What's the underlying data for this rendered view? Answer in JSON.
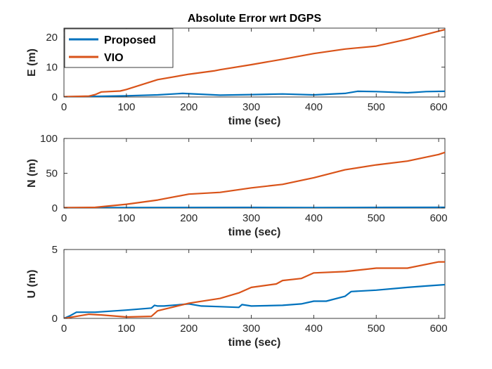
{
  "title": "Absolute Error wrt DGPS",
  "colors": {
    "Proposed": "#0072BD",
    "VIO": "#D95319"
  },
  "chart_data": [
    {
      "type": "line",
      "xlabel": "time (sec)",
      "ylabel": "E (m)",
      "xlim": [
        0,
        610
      ],
      "ylim": [
        0,
        23
      ],
      "xticks": [
        0,
        100,
        200,
        300,
        400,
        500,
        600
      ],
      "yticks": [
        0,
        10,
        20
      ],
      "grid": false,
      "legend": "top-left",
      "series": [
        {
          "name": "Proposed",
          "x": [
            0,
            50,
            100,
            150,
            190,
            250,
            300,
            350,
            400,
            450,
            470,
            500,
            550,
            580,
            610
          ],
          "values": [
            0.1,
            0.2,
            0.4,
            0.7,
            1.2,
            0.6,
            0.8,
            1.0,
            0.7,
            1.2,
            1.9,
            1.8,
            1.4,
            1.8,
            1.9
          ]
        },
        {
          "name": "VIO",
          "x": [
            0,
            40,
            50,
            60,
            90,
            100,
            150,
            200,
            240,
            250,
            300,
            350,
            400,
            450,
            500,
            550,
            600,
            610
          ],
          "values": [
            0.1,
            0.3,
            0.8,
            1.7,
            2.0,
            2.5,
            5.8,
            7.6,
            8.7,
            9.1,
            10.8,
            12.6,
            14.5,
            16.0,
            17.0,
            19.3,
            22.0,
            22.5
          ]
        }
      ]
    },
    {
      "type": "line",
      "xlabel": "time (sec)",
      "ylabel": "N (m)",
      "xlim": [
        0,
        610
      ],
      "ylim": [
        0,
        100
      ],
      "xticks": [
        0,
        100,
        200,
        300,
        400,
        500,
        600
      ],
      "yticks": [
        0,
        50,
        100
      ],
      "grid": false,
      "series": [
        {
          "name": "Proposed",
          "x": [
            0,
            100,
            200,
            300,
            400,
            500,
            610
          ],
          "values": [
            0.5,
            0.7,
            0.8,
            0.9,
            0.6,
            0.9,
            1.0
          ]
        },
        {
          "name": "VIO",
          "x": [
            0,
            50,
            100,
            150,
            200,
            250,
            300,
            350,
            400,
            450,
            500,
            550,
            600,
            610
          ],
          "values": [
            0.5,
            1.0,
            5.5,
            11.5,
            20.0,
            22.5,
            29.0,
            34.0,
            43.5,
            55.0,
            62.0,
            67.5,
            77.0,
            80.0
          ]
        }
      ]
    },
    {
      "type": "line",
      "xlabel": "time (sec)",
      "ylabel": "U (m)",
      "xlim": [
        0,
        610
      ],
      "ylim": [
        0,
        5
      ],
      "xticks": [
        0,
        100,
        200,
        300,
        400,
        500,
        600
      ],
      "yticks": [
        0,
        5
      ],
      "grid": false,
      "series": [
        {
          "name": "Proposed",
          "x": [
            0,
            10,
            20,
            30,
            50,
            100,
            140,
            145,
            150,
            160,
            200,
            220,
            250,
            280,
            285,
            300,
            350,
            380,
            400,
            420,
            450,
            460,
            500,
            550,
            580,
            610
          ],
          "values": [
            0.0,
            0.2,
            0.45,
            0.45,
            0.45,
            0.6,
            0.75,
            0.95,
            0.9,
            0.9,
            1.05,
            0.9,
            0.85,
            0.8,
            1.0,
            0.9,
            0.95,
            1.05,
            1.25,
            1.25,
            1.6,
            1.95,
            2.05,
            2.25,
            2.35,
            2.45
          ]
        },
        {
          "name": "VIO",
          "x": [
            0,
            20,
            40,
            60,
            100,
            140,
            150,
            200,
            250,
            280,
            300,
            340,
            350,
            380,
            400,
            450,
            500,
            550,
            600,
            610
          ],
          "values": [
            0.0,
            0.15,
            0.3,
            0.25,
            0.1,
            0.15,
            0.55,
            1.1,
            1.45,
            1.85,
            2.25,
            2.5,
            2.75,
            2.9,
            3.3,
            3.4,
            3.65,
            3.65,
            4.1,
            4.1
          ]
        }
      ]
    }
  ]
}
